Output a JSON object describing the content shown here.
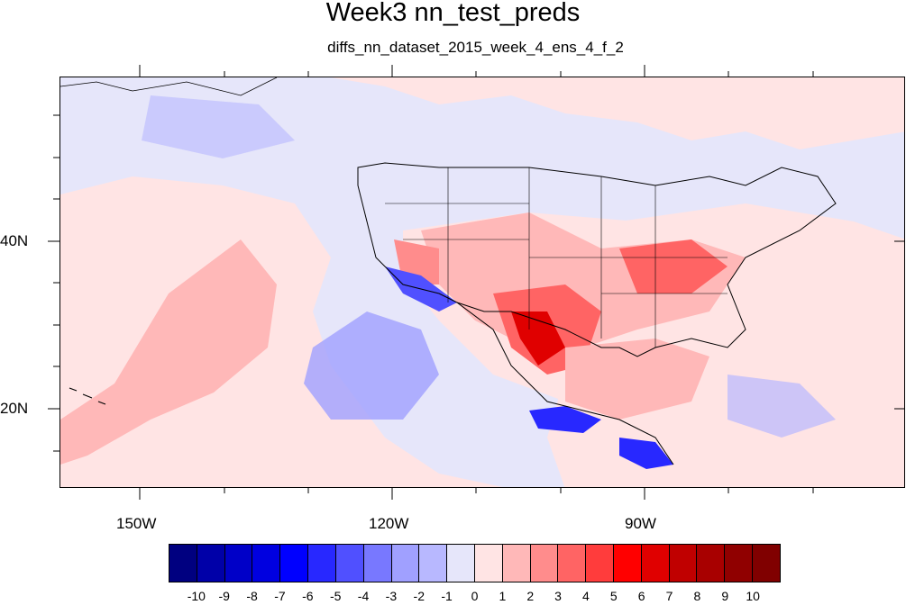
{
  "title": "Week3 nn_test_preds",
  "subtitle": "diffs_nn_dataset_2015_week_4_ens_4_f_2",
  "map": {
    "projection": "cylindrical equidistant",
    "region": "North Pacific / North America",
    "lon_ticks": [
      {
        "label": "150W",
        "value": -150
      },
      {
        "label": "120W",
        "value": -120
      },
      {
        "label": "90W",
        "value": -90
      }
    ],
    "lat_ticks": [
      {
        "label": "40N",
        "value": 40
      },
      {
        "label": "20N",
        "value": 20
      }
    ]
  },
  "colorbar": {
    "labels": [
      "-10",
      "-9",
      "-8",
      "-7",
      "-6",
      "-5",
      "-4",
      "-3",
      "-2",
      "-1",
      "0",
      "1",
      "2",
      "3",
      "4",
      "5",
      "6",
      "7",
      "8",
      "9",
      "10"
    ],
    "colors": [
      "#000080",
      "#0000a8",
      "#0000c8",
      "#0000e0",
      "#0000ff",
      "#2828ff",
      "#5050ff",
      "#7878ff",
      "#a0a0ff",
      "#b8b8ff",
      "#e6e6fa",
      "#ffe4e4",
      "#ffb8b8",
      "#ff8c8c",
      "#ff6464",
      "#ff3c3c",
      "#ff0000",
      "#e00000",
      "#c00000",
      "#a80000",
      "#900000",
      "#800000"
    ]
  }
}
